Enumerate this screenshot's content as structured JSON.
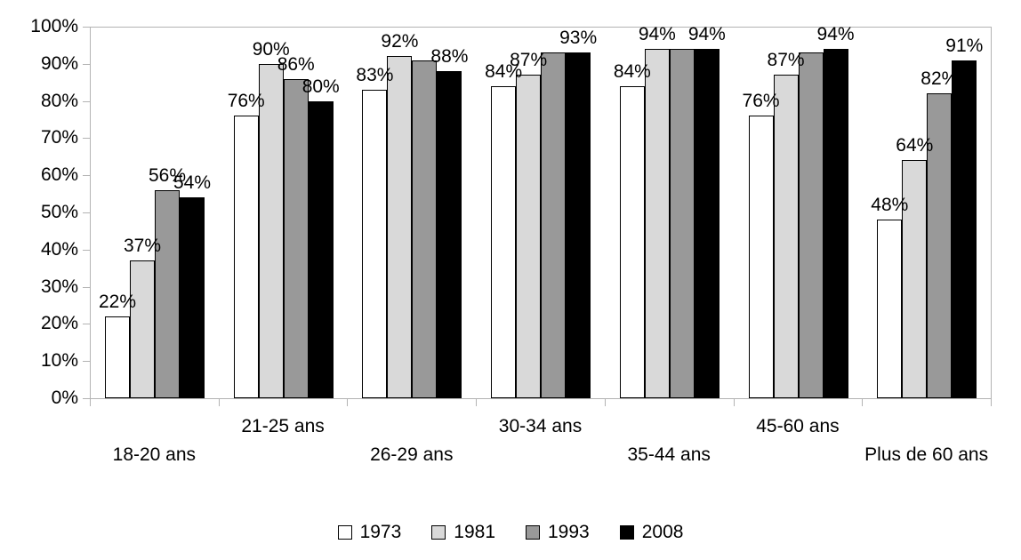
{
  "chart_data": {
    "type": "bar",
    "title": "",
    "xlabel": "",
    "ylabel": "",
    "value_suffix": "%",
    "ylim": [
      0,
      100
    ],
    "y_tick_labels": [
      "0%",
      "10%",
      "20%",
      "30%",
      "40%",
      "50%",
      "60%",
      "70%",
      "80%",
      "90%",
      "100%"
    ],
    "grid": "top-border-only",
    "legend_position": "bottom-center",
    "axis_color": "#b3b3b3",
    "categories": [
      "18-20 ans",
      "21-25 ans",
      "26-29 ans",
      "30-34 ans",
      "35-44 ans",
      "45-60 ans",
      "Plus de 60 ans"
    ],
    "category_label_rows": [
      "lower",
      "upper",
      "lower",
      "upper",
      "lower",
      "upper",
      "lower"
    ],
    "series": [
      {
        "name": "1973",
        "color": "#ffffff",
        "values": [
          22,
          76,
          83,
          84,
          84,
          76,
          48
        ],
        "data_labels": [
          "22%",
          "76%",
          "83%",
          "84%",
          "84%",
          "76%",
          "48%"
        ],
        "label_visible": [
          true,
          true,
          true,
          true,
          true,
          true,
          true
        ]
      },
      {
        "name": "1981",
        "color": "#d9d9d9",
        "values": [
          37,
          90,
          92,
          87,
          94,
          87,
          64
        ],
        "data_labels": [
          "37%",
          "90%",
          "92%",
          "87%",
          "94%",
          "87%",
          "64%"
        ],
        "label_visible": [
          true,
          true,
          true,
          true,
          true,
          true,
          true
        ]
      },
      {
        "name": "1993",
        "color": "#999999",
        "values": [
          56,
          86,
          91,
          93,
          94,
          93,
          82
        ],
        "data_labels": [
          "56%",
          "86%",
          "91%",
          "93%",
          "94%",
          "93%",
          "82%"
        ],
        "label_visible": [
          true,
          true,
          false,
          false,
          false,
          false,
          true
        ]
      },
      {
        "name": "2008",
        "color": "#000000",
        "values": [
          54,
          80,
          88,
          93,
          94,
          94,
          91
        ],
        "data_labels": [
          "54%",
          "80%",
          "88%",
          "93%",
          "94%",
          "94%",
          "91%"
        ],
        "label_visible": [
          true,
          true,
          true,
          true,
          true,
          true,
          true
        ]
      }
    ],
    "legend_entries": [
      "1973",
      "1981",
      "1993",
      "2008"
    ]
  }
}
